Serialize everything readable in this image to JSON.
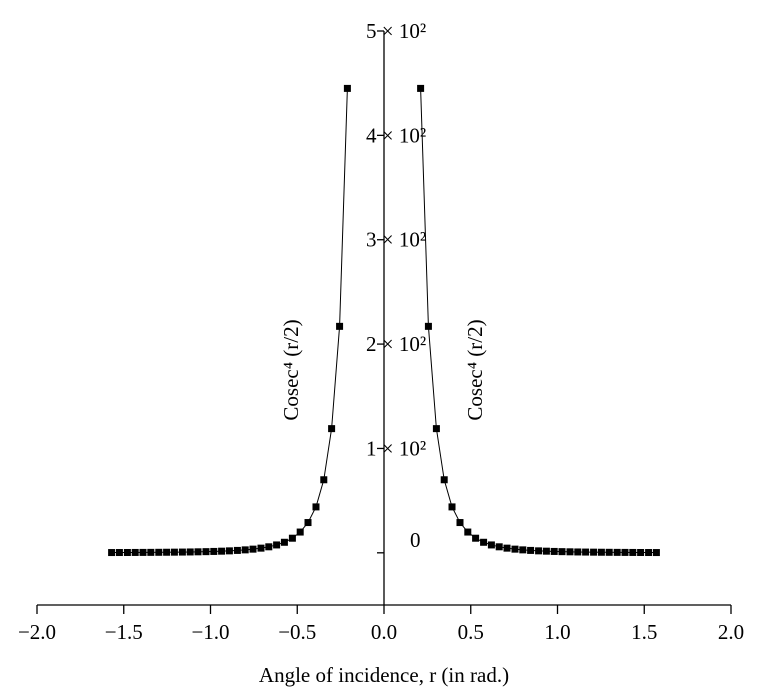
{
  "chart_data": {
    "type": "scatter-line",
    "xlabel": "Angle of incidence, r (in rad.)",
    "annotations": [
      {
        "text": "Cosec⁴ (r/2)"
      },
      {
        "text": "Cosec⁴ (r/2)"
      }
    ],
    "xlim": [
      -2,
      2
    ],
    "xticks": [
      {
        "value": -2,
        "label": "−2.0"
      },
      {
        "value": -1.5,
        "label": "−1.5"
      },
      {
        "value": -1,
        "label": "−1.0"
      },
      {
        "value": -0.5,
        "label": "−0.5"
      },
      {
        "value": 0,
        "label": "0.0"
      },
      {
        "value": 0.5,
        "label": "0.5"
      },
      {
        "value": 1,
        "label": "1.0"
      },
      {
        "value": 1.5,
        "label": "1.5"
      },
      {
        "value": 2,
        "label": "2.0"
      }
    ],
    "ylim": [
      -50,
      500
    ],
    "yticks": [
      0,
      {
        "value": 100,
        "label": "1 × 10²"
      },
      {
        "value": 200,
        "label": "2 × 10²"
      },
      {
        "value": 300,
        "label": "3 × 10²"
      },
      {
        "value": 400,
        "label": "4 × 10²"
      },
      {
        "value": 500,
        "label": "5 × 10²"
      }
    ],
    "color": "#000000",
    "series": [
      {
        "x": [
          -1.57,
          -1.525,
          -1.479,
          -1.434,
          -1.389,
          -1.344,
          -1.298,
          -1.253,
          -1.208,
          -1.162,
          -1.117,
          -1.072,
          -1.026,
          -0.981,
          -0.936,
          -0.891,
          -0.845,
          -0.8,
          -0.755,
          -0.709,
          -0.664,
          -0.619,
          -0.574,
          -0.528,
          -0.483,
          -0.438,
          -0.392,
          -0.347,
          -0.302,
          -0.256,
          -0.211
        ],
        "values": [
          0.26,
          0.29,
          0.31,
          0.35,
          0.39,
          0.43,
          0.49,
          0.55,
          0.63,
          0.72,
          0.82,
          0.96,
          1.12,
          1.32,
          1.57,
          1.88,
          2.3,
          2.83,
          3.52,
          4.48,
          5.76,
          7.55,
          10.1,
          14,
          19.9,
          29,
          44,
          70,
          119,
          217,
          445
        ]
      },
      {
        "x": [
          0.211,
          0.256,
          0.302,
          0.347,
          0.392,
          0.438,
          0.483,
          0.528,
          0.574,
          0.619,
          0.664,
          0.709,
          0.755,
          0.8,
          0.845,
          0.891,
          0.936,
          0.981,
          1.026,
          1.072,
          1.117,
          1.162,
          1.208,
          1.253,
          1.298,
          1.344,
          1.389,
          1.434,
          1.479,
          1.525,
          1.57
        ],
        "values": [
          445,
          217,
          119,
          70,
          44,
          29,
          19.9,
          14,
          10.1,
          7.55,
          5.76,
          4.48,
          3.52,
          2.83,
          2.3,
          1.88,
          1.57,
          1.32,
          1.12,
          0.96,
          0.82,
          0.72,
          0.63,
          0.55,
          0.49,
          0.43,
          0.39,
          0.35,
          0.31,
          0.29,
          0.26
        ]
      }
    ]
  }
}
